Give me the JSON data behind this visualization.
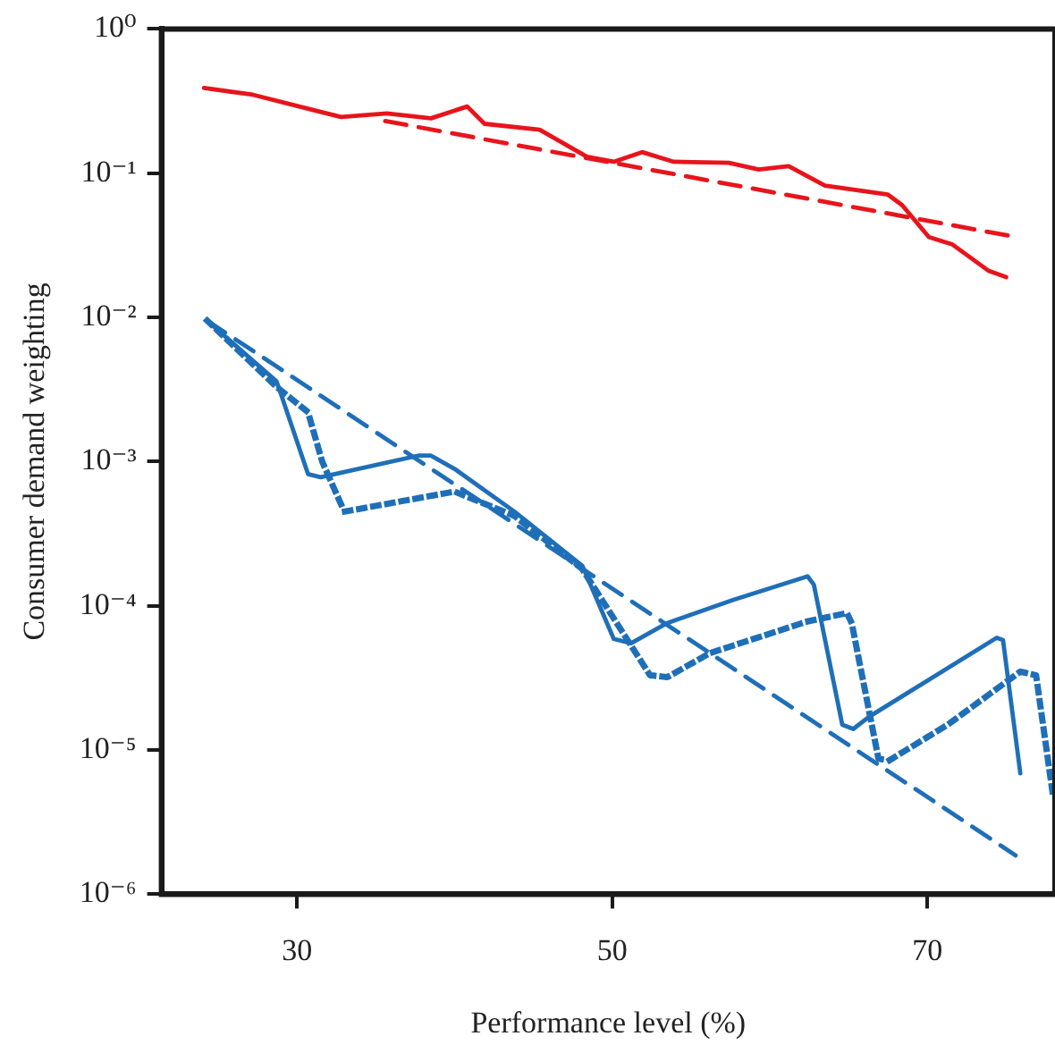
{
  "chart_data": {
    "type": "line",
    "xlabel": "Performance level (%)",
    "ylabel": "Consumer demand weighting",
    "log": "y",
    "grid": false,
    "legend": false,
    "marker": "none",
    "xlim": [
      21.4,
      78.1
    ],
    "xticks": [
      30,
      50,
      70
    ],
    "ylim": [
      1e-06,
      1
    ],
    "yticks": [
      {
        "value": 1,
        "label": "10⁰"
      },
      {
        "value": 0.1,
        "label": "10⁻¹"
      },
      {
        "value": 0.01,
        "label": "10⁻²"
      },
      {
        "value": 0.001,
        "label": "10⁻³"
      },
      {
        "value": 0.0001,
        "label": "10⁻⁴"
      },
      {
        "value": 1e-05,
        "label": "10⁻⁵"
      },
      {
        "value": 1e-06,
        "label": "10⁻⁶"
      }
    ],
    "series": [
      {
        "color": "#e8141c",
        "line_style": "solid",
        "x": [
          24.1,
          27.2,
          30.7,
          32.8,
          35.7,
          38.5,
          40.8,
          41.9,
          45.4,
          48.4,
          50.1,
          51.9,
          53.9,
          57.4,
          59.3,
          61.2,
          63.5,
          67.5,
          68.4,
          70.1,
          71.6,
          73.9,
          75.0
        ],
        "values": [
          0.39,
          0.35,
          0.28,
          0.245,
          0.26,
          0.24,
          0.29,
          0.22,
          0.2,
          0.13,
          0.12,
          0.14,
          0.12,
          0.118,
          0.106,
          0.112,
          0.082,
          0.071,
          0.06,
          0.036,
          0.032,
          0.021,
          0.019
        ]
      },
      {
        "color": "#e8141c",
        "line_style": "dashed",
        "x": [
          35.6,
          75.1
        ],
        "values": [
          0.23,
          0.037
        ]
      },
      {
        "color": "#1f6fb8",
        "line_style": "solid",
        "x": [
          24.3,
          28.7,
          29.0,
          30.7,
          31.5,
          37.7,
          38.5,
          40.0,
          43.8,
          48.1,
          48.4,
          50.1,
          51.2,
          53.5,
          57.7,
          62.4,
          62.8,
          64.6,
          65.3,
          66.3,
          74.4,
          74.8,
          75.9
        ],
        "values": [
          0.0095,
          0.0036,
          0.0029,
          0.00082,
          0.00078,
          0.0011,
          0.0011,
          0.00089,
          0.00045,
          0.00019,
          0.00016,
          5.9e-05,
          5.5e-05,
          7.6e-05,
          0.00011,
          0.00016,
          0.00014,
          1.5e-05,
          1.4e-05,
          1.7e-05,
          6e-05,
          5.8e-05,
          6.9e-06
        ]
      },
      {
        "color": "#1f6fb8",
        "line_style": "dotted",
        "x": [
          24.3,
          28.7,
          30.7,
          31.6,
          33.0,
          40.0,
          43.8,
          48.1,
          50.8,
          52.4,
          53.5,
          56.2,
          62.4,
          64.9,
          65.2,
          66.9,
          67.6,
          71.3,
          75.9,
          76.9,
          78.0
        ],
        "values": [
          0.0095,
          0.0033,
          0.0022,
          0.001,
          0.00045,
          0.00062,
          0.00042,
          0.00018,
          6.2e-05,
          3.3e-05,
          3.2e-05,
          4.7e-05,
          7.8e-05,
          8.9e-05,
          7.6e-05,
          8.7e-06,
          8.5e-06,
          1.5e-05,
          3.5e-05,
          3.3e-05,
          4.6e-06
        ]
      },
      {
        "color": "#1f6fb8",
        "line_style": "dashed",
        "x": [
          24.3,
          75.6
        ],
        "values": [
          0.0095,
          1.86e-06
        ]
      }
    ]
  }
}
